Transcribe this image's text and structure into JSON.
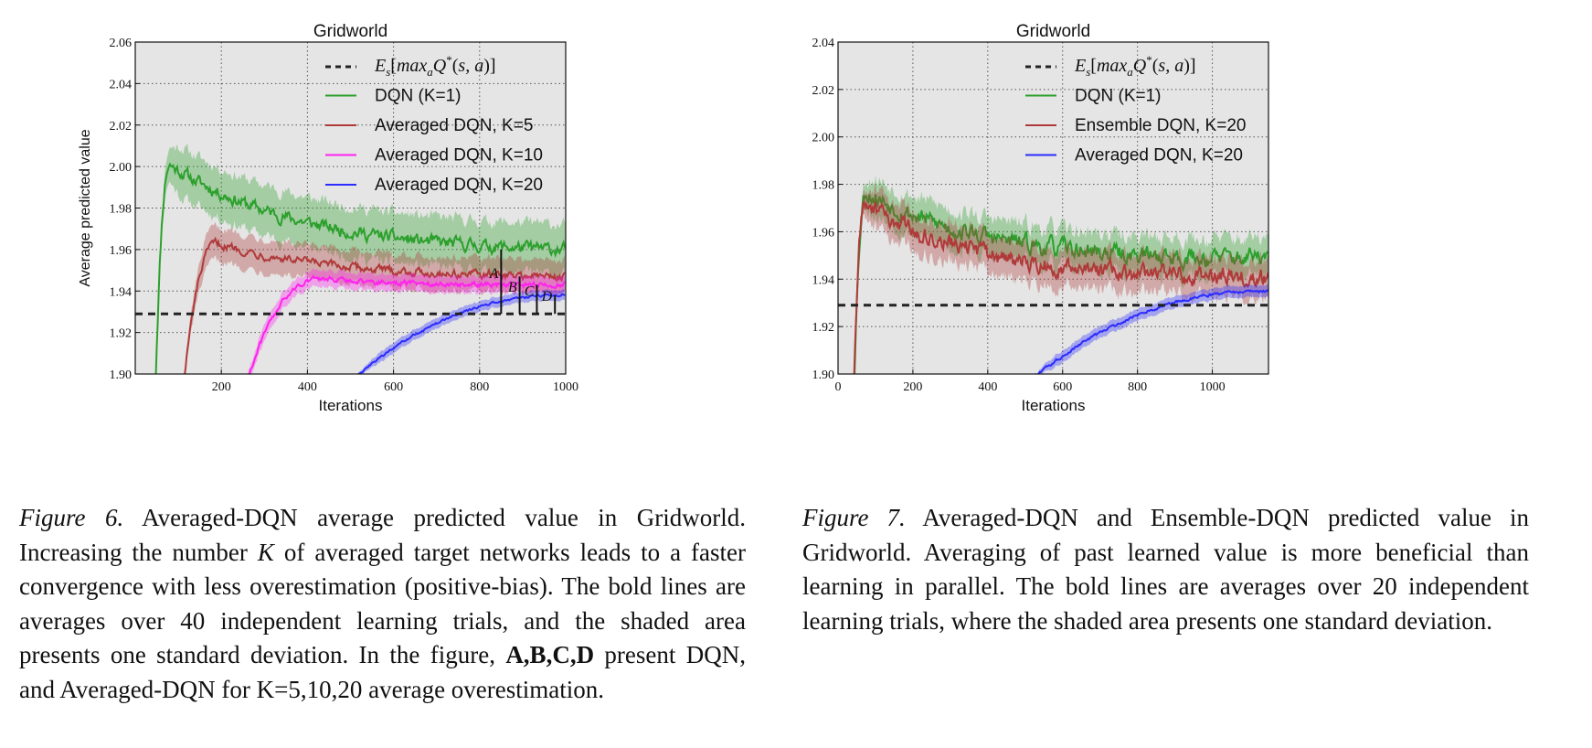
{
  "chart_data": [
    {
      "type": "line",
      "title": "Gridworld",
      "xlabel": "Iterations",
      "ylabel": "Average predicted value",
      "xlim": [
        0,
        1000
      ],
      "ylim": [
        1.9,
        2.06
      ],
      "xticks": [
        "200",
        "400",
        "600",
        "800",
        "1000"
      ],
      "yticks": [
        "1.90",
        "1.92",
        "1.94",
        "1.96",
        "1.98",
        "2.00",
        "2.02",
        "2.04",
        "2.06"
      ],
      "grid": true,
      "legend_position": "top-right",
      "baseline": {
        "label": "E_s[max_a Q*(s,a)]",
        "value": 1.929,
        "color": "#222222"
      },
      "series": [
        {
          "name": "DQN (K=1)",
          "color": "#2ca02c",
          "start": 45,
          "y0": 1.88,
          "peak_x": 80,
          "peak": 2.001,
          "end": 1.96,
          "std": 0.012,
          "noise": 0.0022
        },
        {
          "name": "Averaged DQN, K=5",
          "color": "#b03a3a",
          "start": 105,
          "y0": 1.88,
          "peak_x": 190,
          "peak": 1.963,
          "end": 1.947,
          "std": 0.008,
          "noise": 0.0014
        },
        {
          "name": "Averaged DQN, K=10",
          "color": "#ff22ee",
          "start": 235,
          "y0": 1.88,
          "peak_x": 430,
          "peak": 1.946,
          "end": 1.943,
          "std": 0.004,
          "noise": 0.0009
        },
        {
          "name": "Averaged DQN, K=20",
          "color": "#2b2bff",
          "start": 510,
          "y0": 1.898,
          "peak_x": 1000,
          "peak": 1.938,
          "end": 1.938,
          "std": 0.0025,
          "noise": 0.0004
        }
      ],
      "annotations": [
        {
          "text": "A",
          "x": 850,
          "top": 1.96
        },
        {
          "text": "B",
          "x": 893,
          "top": 1.947
        },
        {
          "text": "C",
          "x": 933,
          "top": 1.943
        },
        {
          "text": "D",
          "x": 975,
          "top": 1.938
        }
      ]
    },
    {
      "type": "line",
      "title": "Gridworld",
      "xlabel": "Iterations",
      "ylabel": "Average predicted value",
      "xlim": [
        0,
        1150
      ],
      "ylim": [
        1.9,
        2.04
      ],
      "xticks": [
        "0",
        "200",
        "400",
        "600",
        "800",
        "1000"
      ],
      "yticks": [
        "1.90",
        "1.92",
        "1.94",
        "1.96",
        "1.98",
        "2.00",
        "2.02",
        "2.04"
      ],
      "grid": true,
      "legend_position": "top-right",
      "baseline": {
        "label": "E_s[max_a Q*(s,a)]",
        "value": 1.929,
        "color": "#222222"
      },
      "series": [
        {
          "name": "DQN (K=1)",
          "color": "#2ca02c",
          "start": 40,
          "y0": 1.88,
          "peak_x": 75,
          "peak": 1.977,
          "end": 1.949,
          "std": 0.008,
          "noise": 0.0028
        },
        {
          "name": "Ensemble DQN, K=20",
          "color": "#b03a3a",
          "start": 40,
          "y0": 1.88,
          "peak_x": 72,
          "peak": 1.972,
          "end": 1.941,
          "std": 0.008,
          "noise": 0.0026
        },
        {
          "name": "Averaged DQN, K=20",
          "color": "#2b2bff",
          "start": 520,
          "y0": 1.898,
          "peak_x": 1150,
          "peak": 1.935,
          "end": 1.935,
          "std": 0.0025,
          "noise": 0.0004
        }
      ]
    }
  ],
  "captions": {
    "fig6": {
      "label": "Figure 6.",
      "part1": " Averaged-DQN average predicted value in Gridworld. Increasing the number ",
      "k": "K",
      "part2": " of averaged target networks leads to a faster convergence with less overestimation (positive-bias). The bold lines are averages over 40 independent learning trials, and the shaded area presents one standard deviation. In the figure, ",
      "bold": "A,B,C,D",
      "part3": " present DQN, and Averaged-DQN for K=5,10,20 average overestimation."
    },
    "fig7": {
      "label": "Figure 7.",
      "body": " Averaged-DQN and Ensemble-DQN predicted value in Gridworld. Averaging of past learned value is more beneficial than learning in parallel. The bold lines are averages over 20 independent learning trials, where the shaded area presents one standard deviation."
    }
  }
}
